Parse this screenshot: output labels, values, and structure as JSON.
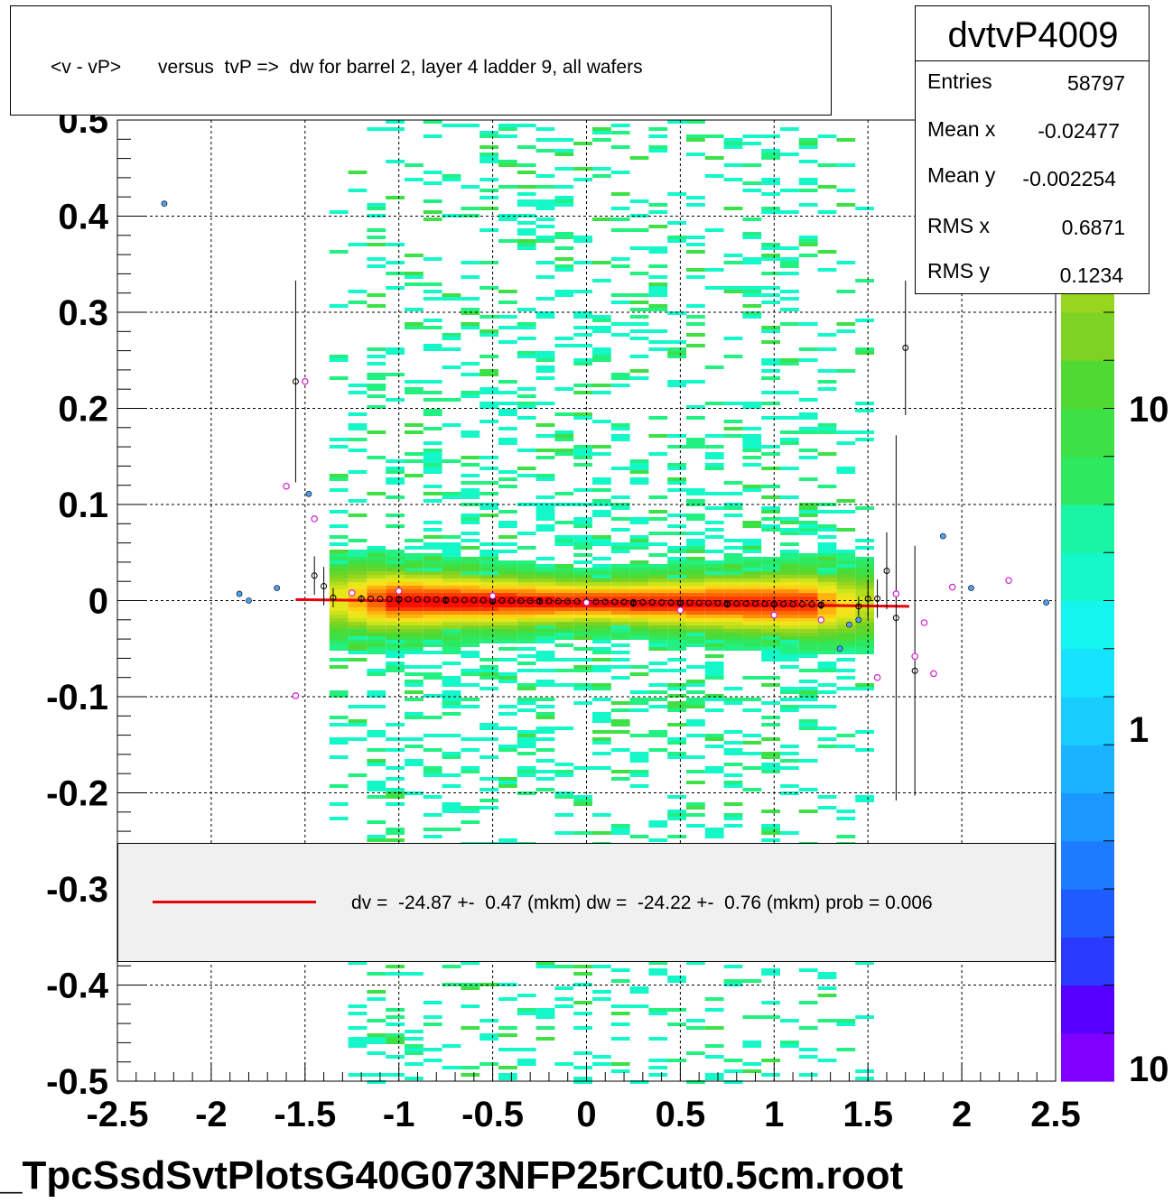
{
  "chart_data": {
    "type": "heatmap",
    "title": "<v - vP>       versus  tvP =>  dw for barrel 2, layer 4 ladder 9, all wafers",
    "xlabel": "",
    "ylabel": "",
    "xlim": [
      -2.5,
      2.5
    ],
    "ylim": [
      -0.5,
      0.5
    ],
    "x_ticks": [
      "-2.5",
      "-2",
      "-1.5",
      "-1",
      "-0.5",
      "0",
      "0.5",
      "1",
      "1.5",
      "2",
      "2.5"
    ],
    "y_ticks": [
      "0.5",
      "0.4",
      "0.3",
      "0.2",
      "0.1",
      "0",
      "-0.1",
      "-0.2",
      "-0.3",
      "-0.4",
      "-0.5"
    ],
    "grid": true,
    "z_scale": "log",
    "z_ticks": [
      "10",
      "1",
      "10"
    ],
    "occupied_x_range": [
      -1.35,
      1.45
    ],
    "core_y_value": 0.0,
    "core_y_width": 0.015,
    "fit_line": {
      "x": [
        -1.55,
        1.72
      ],
      "y": [
        0.001,
        -0.006
      ],
      "color": "#e8000b"
    },
    "profile_points_black": [
      {
        "x": -1.55,
        "y": 0.228,
        "err": 0.105
      },
      {
        "x": -1.45,
        "y": 0.026,
        "err": 0.02
      },
      {
        "x": -1.4,
        "y": 0.015,
        "err": 0.02
      },
      {
        "x": -1.35,
        "y": 0.003,
        "err": 0.01
      },
      {
        "x": -1.2,
        "y": 0.002,
        "err": 0.004
      },
      {
        "x": -1.0,
        "y": 0.001,
        "err": 0.003
      },
      {
        "x": -0.75,
        "y": 0.0,
        "err": 0.003
      },
      {
        "x": -0.5,
        "y": -0.001,
        "err": 0.003
      },
      {
        "x": -0.25,
        "y": -0.001,
        "err": 0.003
      },
      {
        "x": 0.0,
        "y": -0.002,
        "err": 0.003
      },
      {
        "x": 0.25,
        "y": -0.003,
        "err": 0.003
      },
      {
        "x": 0.5,
        "y": -0.003,
        "err": 0.003
      },
      {
        "x": 0.75,
        "y": -0.004,
        "err": 0.003
      },
      {
        "x": 1.0,
        "y": -0.004,
        "err": 0.003
      },
      {
        "x": 1.25,
        "y": -0.005,
        "err": 0.004
      },
      {
        "x": 1.45,
        "y": -0.006,
        "err": 0.01
      },
      {
        "x": 1.5,
        "y": 0.002,
        "err": 0.02
      },
      {
        "x": 1.55,
        "y": 0.002,
        "err": 0.02
      },
      {
        "x": 1.6,
        "y": 0.031,
        "err": 0.04
      },
      {
        "x": 1.65,
        "y": -0.018,
        "err": 0.19
      },
      {
        "x": 1.7,
        "y": 0.263,
        "err": 0.07
      },
      {
        "x": 1.75,
        "y": -0.073,
        "err": 0.13
      }
    ],
    "profile_points_magenta": [
      {
        "x": -1.6,
        "y": 0.119,
        "err": 0.0
      },
      {
        "x": -1.55,
        "y": -0.099,
        "err": 0.0
      },
      {
        "x": -1.5,
        "y": 0.228,
        "err": 0.0
      },
      {
        "x": -1.45,
        "y": 0.085,
        "err": 0.0
      },
      {
        "x": -1.25,
        "y": 0.008,
        "err": 0.0
      },
      {
        "x": -1.0,
        "y": 0.01,
        "err": 0.0
      },
      {
        "x": -0.5,
        "y": 0.005,
        "err": 0.0
      },
      {
        "x": 0.0,
        "y": -0.002,
        "err": 0.0
      },
      {
        "x": 0.5,
        "y": -0.01,
        "err": 0.0
      },
      {
        "x": 1.0,
        "y": -0.015,
        "err": 0.0
      },
      {
        "x": 1.25,
        "y": -0.02,
        "err": 0.0
      },
      {
        "x": 1.55,
        "y": -0.08,
        "err": 0.0
      },
      {
        "x": 1.65,
        "y": 0.007,
        "err": 0.0
      },
      {
        "x": 1.75,
        "y": -0.058,
        "err": 0.0
      },
      {
        "x": 1.8,
        "y": -0.023,
        "err": 0.0
      },
      {
        "x": 1.85,
        "y": -0.076,
        "err": 0.0
      },
      {
        "x": 1.95,
        "y": 0.014,
        "err": 0.0
      },
      {
        "x": 2.25,
        "y": 0.021,
        "err": 0.0
      }
    ],
    "profile_points_blue": [
      {
        "x": -2.25,
        "y": 0.413
      },
      {
        "x": -1.85,
        "y": 0.007
      },
      {
        "x": -1.8,
        "y": 0.0
      },
      {
        "x": -1.65,
        "y": 0.013
      },
      {
        "x": -1.48,
        "y": 0.111
      },
      {
        "x": 1.35,
        "y": -0.05
      },
      {
        "x": 1.4,
        "y": -0.025
      },
      {
        "x": 1.45,
        "y": -0.02
      },
      {
        "x": 1.9,
        "y": 0.067
      },
      {
        "x": 2.05,
        "y": 0.013
      },
      {
        "x": 2.45,
        "y": -0.002
      }
    ]
  },
  "title_text": "<v - vP>       versus  tvP =>  dw for barrel 2, layer 4 ladder 9, all wafers",
  "stats": {
    "name": "dvtvP4009",
    "rows": [
      {
        "label": "Entries",
        "value": "58797"
      },
      {
        "label": "Mean x",
        "value": "-0.02477"
      },
      {
        "label": "Mean y",
        "value": "-0.002254"
      },
      {
        "label": "RMS x",
        "value": "0.6871"
      },
      {
        "label": "RMS y",
        "value": "0.1234"
      }
    ]
  },
  "fit": {
    "text": "dv =  -24.87 +-  0.47 (mkm) dw =  -24.22 +-  0.76 (mkm) prob = 0.006"
  },
  "footer": "_TpcSsdSvtPlotsG40G073NFP25rCut0.5cm.root",
  "palette": [
    "#8000ff",
    "#6a00ff",
    "#5500ff",
    "#3f1bff",
    "#2a3bff",
    "#1f5cff",
    "#1c7bff",
    "#1b98ff",
    "#19b3ff",
    "#18ccff",
    "#16e3ff",
    "#14f5ef",
    "#14f7c8",
    "#19f5a4",
    "#22f080",
    "#2ee85f",
    "#3de045",
    "#4fd933",
    "#64d52a",
    "#7dd324",
    "#97d61f",
    "#b2dc1c",
    "#cce31a",
    "#e4e81a",
    "#f5e21a",
    "#ffcf14",
    "#ffb30e",
    "#ff8f09",
    "#ff6605",
    "#ff3a02",
    "#ff0d00"
  ]
}
